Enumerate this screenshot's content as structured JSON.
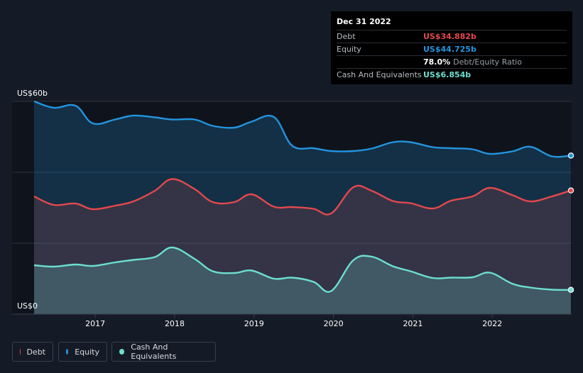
{
  "tooltip": {
    "date": "Dec 31 2022",
    "rows": [
      {
        "label": "Debt",
        "value": "US$34.882b",
        "color": "#e5484d"
      },
      {
        "label": "Equity",
        "value": "US$44.725b",
        "color": "#2394df"
      },
      {
        "label": "",
        "value": "78.0%",
        "sub": "Debt/Equity Ratio",
        "color": "#ffffff"
      },
      {
        "label": "Cash And Equivalents",
        "value": "US$6.854b",
        "color": "#6cdfd0"
      }
    ]
  },
  "legend": [
    {
      "label": "Debt",
      "color": "#e5484d"
    },
    {
      "label": "Equity",
      "color": "#2394df"
    },
    {
      "label": "Cash And Equivalents",
      "color": "#6cdfd0"
    }
  ],
  "chart_data": {
    "type": "area",
    "ylabels": {
      "top": "US$60b",
      "bottom": "US$0"
    },
    "ylim": [
      0,
      60
    ],
    "xlim": [
      2016.23,
      2022.99
    ],
    "xticks": [
      "2017",
      "2018",
      "2019",
      "2020",
      "2021",
      "2022"
    ],
    "grid": true,
    "series": [
      {
        "name": "Equity",
        "color": "#2394df",
        "x": [
          2016.23,
          2016.48,
          2016.75,
          2016.97,
          2017.25,
          2017.48,
          2017.75,
          2017.97,
          2018.25,
          2018.48,
          2018.75,
          2018.97,
          2019.25,
          2019.48,
          2019.75,
          2019.97,
          2020.25,
          2020.48,
          2020.75,
          2020.97,
          2021.25,
          2021.48,
          2021.75,
          2021.97,
          2022.25,
          2022.48,
          2022.75,
          2022.99
        ],
        "y": [
          60,
          58.2,
          58.8,
          53.8,
          54.9,
          56,
          55.5,
          54.9,
          54.9,
          53.1,
          52.6,
          54.3,
          55.6,
          47.5,
          46.8,
          46,
          46,
          46.7,
          48.5,
          48.5,
          47.1,
          46.8,
          46.5,
          45.2,
          45.9,
          47.2,
          44.5,
          44.725
        ]
      },
      {
        "name": "Debt",
        "color": "#e5484d",
        "x": [
          2016.23,
          2016.48,
          2016.75,
          2016.97,
          2017.25,
          2017.48,
          2017.75,
          2017.97,
          2018.25,
          2018.48,
          2018.75,
          2018.97,
          2019.25,
          2019.48,
          2019.75,
          2019.97,
          2020.25,
          2020.48,
          2020.75,
          2020.97,
          2021.25,
          2021.48,
          2021.75,
          2021.97,
          2022.25,
          2022.48,
          2022.75,
          2022.99
        ],
        "y": [
          33.2,
          30.8,
          31.2,
          29.6,
          30.6,
          31.8,
          34.8,
          38.1,
          35.3,
          31.6,
          31.6,
          33.8,
          30.3,
          30.2,
          29.7,
          28.4,
          35.8,
          34.8,
          31.9,
          31.3,
          29.8,
          32,
          33.2,
          35.6,
          33.6,
          31.8,
          33.2,
          34.882
        ]
      },
      {
        "name": "Cash And Equivalents",
        "color": "#6cdfd0",
        "x": [
          2016.23,
          2016.48,
          2016.75,
          2016.97,
          2017.25,
          2017.48,
          2017.75,
          2017.97,
          2018.25,
          2018.48,
          2018.75,
          2018.97,
          2019.25,
          2019.48,
          2019.75,
          2019.97,
          2020.25,
          2020.48,
          2020.75,
          2020.97,
          2021.25,
          2021.48,
          2021.75,
          2021.97,
          2022.25,
          2022.48,
          2022.75,
          2022.99
        ],
        "y": [
          13.8,
          13.4,
          14,
          13.6,
          14.6,
          15.3,
          16.1,
          18.8,
          15.6,
          12.1,
          11.6,
          12.3,
          10,
          10.3,
          9.1,
          6.5,
          15.2,
          16.2,
          13.5,
          12.1,
          10.2,
          10.3,
          10.4,
          11.7,
          8.6,
          7.5,
          6.9,
          6.854
        ]
      }
    ]
  }
}
